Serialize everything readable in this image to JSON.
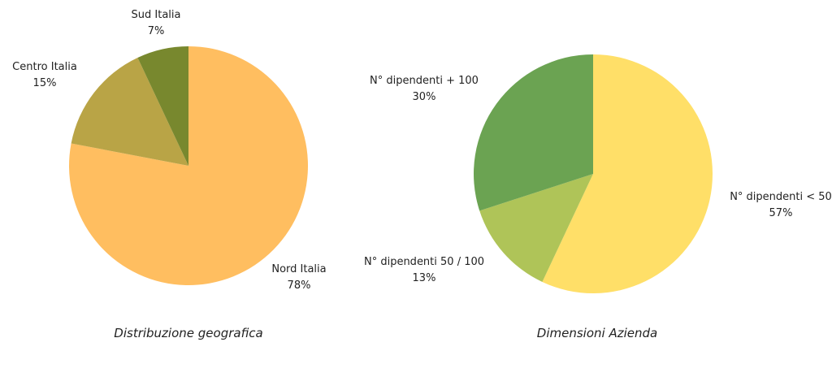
{
  "chart_data": [
    {
      "type": "pie",
      "title": "Distribuzione geografica",
      "slices": [
        {
          "label": "Nord Italia",
          "value": 78,
          "display": "78%",
          "color": "#FFBE60"
        },
        {
          "label": "Centro Italia",
          "value": 15,
          "display": "15%",
          "color": "#B9A446"
        },
        {
          "label": "Sud Italia",
          "value": 7,
          "display": "7%",
          "color": "#78882E"
        }
      ]
    },
    {
      "type": "pie",
      "title": "Dimensioni Azienda",
      "slices": [
        {
          "label": "N° dipendenti < 50",
          "value": 57,
          "display": "57%",
          "color": "#FFDF68"
        },
        {
          "label": "N° dipendenti 50 / 100",
          "value": 13,
          "display": "13%",
          "color": "#AFC458"
        },
        {
          "label": "N° dipendenti + 100",
          "value": 30,
          "display": "30%",
          "color": "#6BA352"
        }
      ]
    }
  ]
}
